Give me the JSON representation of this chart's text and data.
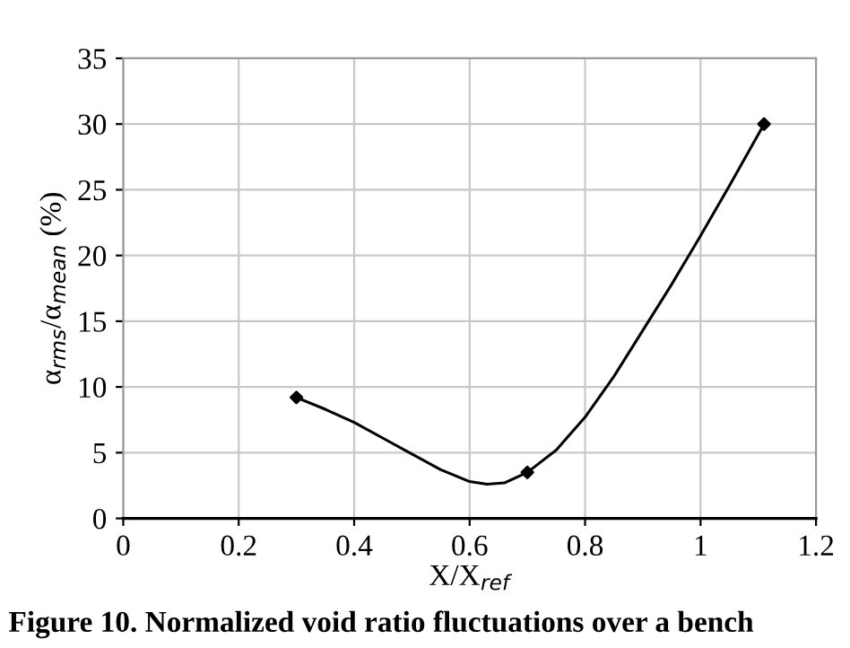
{
  "chart_data": {
    "type": "line",
    "xlabel": "X/X$_{ref}$",
    "ylabel": "α$_{rms}$/α$_{mean}$ (%)",
    "annotations": [
      "Figure 10. Normalized void ratio fluctuations over a bench"
    ],
    "series": [
      {
        "color": "#000000",
        "marker": "none",
        "x": [
          0.3,
          0.35,
          0.4,
          0.45,
          0.5,
          0.55,
          0.6,
          0.63,
          0.66,
          0.7,
          0.75,
          0.8,
          0.85,
          0.9,
          0.95,
          1.0,
          1.05,
          1.11
        ],
        "values": [
          9.2,
          8.3,
          7.3,
          6.1,
          4.9,
          3.7,
          2.8,
          2.6,
          2.7,
          3.5,
          5.2,
          7.7,
          10.8,
          14.3,
          17.8,
          21.5,
          25.3,
          30
        ]
      },
      {
        "type": "scatter",
        "color": "#000000",
        "marker": "diamond",
        "x": [
          0.3,
          0.7,
          1.11
        ],
        "values": [
          9.2,
          3.5,
          30
        ]
      }
    ],
    "xlim": [
      0,
      1.2
    ],
    "xticks": [
      0,
      0.2,
      0.4,
      0.6,
      0.8,
      1,
      1.2
    ],
    "ylim": [
      0,
      35
    ],
    "yticks": [
      0,
      5,
      10,
      15,
      20,
      25,
      30,
      35
    ],
    "grid": true
  }
}
